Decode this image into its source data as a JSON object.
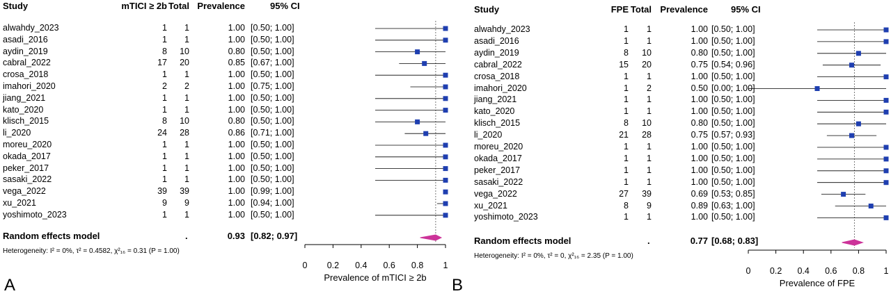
{
  "chart_data": [
    {
      "type": "forest",
      "panel_label": "A",
      "headers": {
        "study": "Study",
        "events": "mTICI ≥ 2b",
        "total": "Total",
        "prevalence": "Prevalence",
        "ci": "95% CI"
      },
      "xlabel": "Prevalence of mTICI ≥ 2b",
      "xlim": [
        0,
        1
      ],
      "xticks": [
        {
          "v": 0,
          "t": "0"
        },
        {
          "v": 0.2,
          "t": "0.2"
        },
        {
          "v": 0.4,
          "t": "0.4"
        },
        {
          "v": 0.6,
          "t": "0.6"
        },
        {
          "v": 0.8,
          "t": "0.8"
        },
        {
          "v": 1,
          "t": "1"
        }
      ],
      "summary_line": 0.93,
      "studies": [
        {
          "name": "alwahdy_2023",
          "events": "1",
          "total": "1",
          "prev": "1.00",
          "ci": "[0.50; 1.00]",
          "est": 1.0,
          "lo": 0.5,
          "hi": 1.0
        },
        {
          "name": "asadi_2016",
          "events": "1",
          "total": "1",
          "prev": "1.00",
          "ci": "[0.50; 1.00]",
          "est": 1.0,
          "lo": 0.5,
          "hi": 1.0
        },
        {
          "name": "aydin_2019",
          "events": "8",
          "total": "10",
          "prev": "0.80",
          "ci": "[0.50; 1.00]",
          "est": 0.8,
          "lo": 0.5,
          "hi": 1.0
        },
        {
          "name": "cabral_2022",
          "events": "17",
          "total": "20",
          "prev": "0.85",
          "ci": "[0.67; 1.00]",
          "est": 0.85,
          "lo": 0.67,
          "hi": 1.0
        },
        {
          "name": "crosa_2018",
          "events": "1",
          "total": "1",
          "prev": "1.00",
          "ci": "[0.50; 1.00]",
          "est": 1.0,
          "lo": 0.5,
          "hi": 1.0
        },
        {
          "name": "imahori_2020",
          "events": "2",
          "total": "2",
          "prev": "1.00",
          "ci": "[0.75; 1.00]",
          "est": 1.0,
          "lo": 0.75,
          "hi": 1.0
        },
        {
          "name": "jiang_2021",
          "events": "1",
          "total": "1",
          "prev": "1.00",
          "ci": "[0.50; 1.00]",
          "est": 1.0,
          "lo": 0.5,
          "hi": 1.0
        },
        {
          "name": "kato_2020",
          "events": "1",
          "total": "1",
          "prev": "1.00",
          "ci": "[0.50; 1.00]",
          "est": 1.0,
          "lo": 0.5,
          "hi": 1.0
        },
        {
          "name": "klisch_2015",
          "events": "8",
          "total": "10",
          "prev": "0.80",
          "ci": "[0.50; 1.00]",
          "est": 0.8,
          "lo": 0.5,
          "hi": 1.0
        },
        {
          "name": "li_2020",
          "events": "24",
          "total": "28",
          "prev": "0.86",
          "ci": "[0.71; 1.00]",
          "est": 0.86,
          "lo": 0.71,
          "hi": 1.0
        },
        {
          "name": "moreu_2020",
          "events": "1",
          "total": "1",
          "prev": "1.00",
          "ci": "[0.50; 1.00]",
          "est": 1.0,
          "lo": 0.5,
          "hi": 1.0
        },
        {
          "name": "okada_2017",
          "events": "1",
          "total": "1",
          "prev": "1.00",
          "ci": "[0.50; 1.00]",
          "est": 1.0,
          "lo": 0.5,
          "hi": 1.0
        },
        {
          "name": "peker_2017",
          "events": "1",
          "total": "1",
          "prev": "1.00",
          "ci": "[0.50; 1.00]",
          "est": 1.0,
          "lo": 0.5,
          "hi": 1.0
        },
        {
          "name": "sasaki_2022",
          "events": "1",
          "total": "1",
          "prev": "1.00",
          "ci": "[0.50; 1.00]",
          "est": 1.0,
          "lo": 0.5,
          "hi": 1.0
        },
        {
          "name": "vega_2022",
          "events": "39",
          "total": "39",
          "prev": "1.00",
          "ci": "[0.99; 1.00]",
          "est": 1.0,
          "lo": 0.99,
          "hi": 1.0
        },
        {
          "name": "xu_2021",
          "events": "9",
          "total": "9",
          "prev": "1.00",
          "ci": "[0.94; 1.00]",
          "est": 1.0,
          "lo": 0.94,
          "hi": 1.0
        },
        {
          "name": "yoshimoto_2023",
          "events": "1",
          "total": "1",
          "prev": "1.00",
          "ci": "[0.50; 1.00]",
          "est": 1.0,
          "lo": 0.5,
          "hi": 1.0
        }
      ],
      "summary": {
        "name": "Random effects model",
        "dot": ".",
        "prev": "0.93",
        "ci": "[0.82; 0.97]",
        "est": 0.93,
        "lo": 0.82,
        "hi": 0.97
      },
      "heterogeneity": {
        "prefix": "Heterogeneity: ",
        "i2": "I² = 0%,",
        "tau2": " τ² = 0.4582,",
        "chi2": " χ²₁₆ = 0.31",
        "p": " (P = 1.00)"
      }
    },
    {
      "type": "forest",
      "panel_label": "B",
      "headers": {
        "study": "Study",
        "events": "FPE",
        "total": "Total",
        "prevalence": "Prevalence",
        "ci": "95% CI"
      },
      "xlabel": "Prevalence of FPE",
      "xlim": [
        0,
        1
      ],
      "xticks": [
        {
          "v": 0,
          "t": "0"
        },
        {
          "v": 0.2,
          "t": "0.2"
        },
        {
          "v": 0.4,
          "t": "0.4"
        },
        {
          "v": 0.6,
          "t": "0.6"
        },
        {
          "v": 0.8,
          "t": "0.8"
        },
        {
          "v": 1,
          "t": "1"
        }
      ],
      "summary_line": 0.77,
      "studies": [
        {
          "name": "alwahdy_2023",
          "events": "1",
          "total": "1",
          "prev": "1.00",
          "ci": "[0.50; 1.00]",
          "est": 1.0,
          "lo": 0.5,
          "hi": 1.0
        },
        {
          "name": "asadi_2016",
          "events": "1",
          "total": "1",
          "prev": "1.00",
          "ci": "[0.50; 1.00]",
          "est": 1.0,
          "lo": 0.5,
          "hi": 1.0
        },
        {
          "name": "aydin_2019",
          "events": "8",
          "total": "10",
          "prev": "0.80",
          "ci": "[0.50; 1.00]",
          "est": 0.8,
          "lo": 0.5,
          "hi": 1.0
        },
        {
          "name": "cabral_2022",
          "events": "15",
          "total": "20",
          "prev": "0.75",
          "ci": "[0.54; 0.96]",
          "est": 0.75,
          "lo": 0.54,
          "hi": 0.96
        },
        {
          "name": "crosa_2018",
          "events": "1",
          "total": "1",
          "prev": "1.00",
          "ci": "[0.50; 1.00]",
          "est": 1.0,
          "lo": 0.5,
          "hi": 1.0
        },
        {
          "name": "imahori_2020",
          "events": "1",
          "total": "2",
          "prev": "0.50",
          "ci": "[0.00; 1.00]",
          "est": 0.5,
          "lo": 0.0,
          "hi": 1.0
        },
        {
          "name": "jiang_2021",
          "events": "1",
          "total": "1",
          "prev": "1.00",
          "ci": "[0.50; 1.00]",
          "est": 1.0,
          "lo": 0.5,
          "hi": 1.0
        },
        {
          "name": "kato_2020",
          "events": "1",
          "total": "1",
          "prev": "1.00",
          "ci": "[0.50; 1.00]",
          "est": 1.0,
          "lo": 0.5,
          "hi": 1.0
        },
        {
          "name": "klisch_2015",
          "events": "8",
          "total": "10",
          "prev": "0.80",
          "ci": "[0.50; 1.00]",
          "est": 0.8,
          "lo": 0.5,
          "hi": 1.0
        },
        {
          "name": "li_2020",
          "events": "21",
          "total": "28",
          "prev": "0.75",
          "ci": "[0.57; 0.93]",
          "est": 0.75,
          "lo": 0.57,
          "hi": 0.93
        },
        {
          "name": "moreu_2020",
          "events": "1",
          "total": "1",
          "prev": "1.00",
          "ci": "[0.50; 1.00]",
          "est": 1.0,
          "lo": 0.5,
          "hi": 1.0
        },
        {
          "name": "okada_2017",
          "events": "1",
          "total": "1",
          "prev": "1.00",
          "ci": "[0.50; 1.00]",
          "est": 1.0,
          "lo": 0.5,
          "hi": 1.0
        },
        {
          "name": "peker_2017",
          "events": "1",
          "total": "1",
          "prev": "1.00",
          "ci": "[0.50; 1.00]",
          "est": 1.0,
          "lo": 0.5,
          "hi": 1.0
        },
        {
          "name": "sasaki_2022",
          "events": "1",
          "total": "1",
          "prev": "1.00",
          "ci": "[0.50; 1.00]",
          "est": 1.0,
          "lo": 0.5,
          "hi": 1.0
        },
        {
          "name": "vega_2022",
          "events": "27",
          "total": "39",
          "prev": "0.69",
          "ci": "[0.53; 0.85]",
          "est": 0.69,
          "lo": 0.53,
          "hi": 0.85
        },
        {
          "name": "xu_2021",
          "events": "8",
          "total": "9",
          "prev": "0.89",
          "ci": "[0.63; 1.00]",
          "est": 0.89,
          "lo": 0.63,
          "hi": 1.0
        },
        {
          "name": "yoshimoto_2023",
          "events": "1",
          "total": "1",
          "prev": "1.00",
          "ci": "[0.50; 1.00]",
          "est": 1.0,
          "lo": 0.5,
          "hi": 1.0
        }
      ],
      "summary": {
        "name": "Random effects model",
        "dot": ".",
        "prev": "0.77",
        "ci": "[0.68; 0.83]",
        "est": 0.77,
        "lo": 0.68,
        "hi": 0.83
      },
      "heterogeneity": {
        "prefix": "Heterogeneity: ",
        "i2": "I² = 0%,",
        "tau2": " τ² = 0,",
        "chi2": " χ²₁₆ = 2.35",
        "p": " (P = 1.00)"
      }
    }
  ],
  "colors": {
    "square": "#1f3fb0",
    "diamond": "#cc3399",
    "line": "#000000",
    "summary_line": "#777777"
  }
}
